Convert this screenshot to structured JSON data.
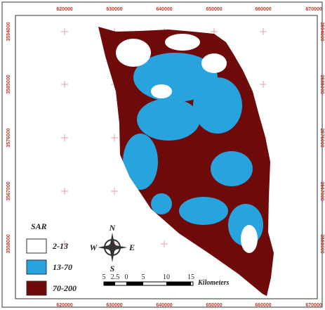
{
  "map": {
    "x_labels": [
      620000,
      630000,
      640000,
      650000,
      660000,
      670000
    ],
    "y_labels": [
      3594000,
      3585000,
      3576000,
      3567000,
      3558000
    ],
    "legend": {
      "title": "SAR",
      "items": [
        {
          "label": "2-13",
          "color": "#ffffff"
        },
        {
          "label": "13-70",
          "color": "#27a4dd"
        },
        {
          "label": "70-200",
          "color": "#6e0a0a"
        }
      ]
    },
    "compass": {
      "n": "N",
      "s": "S",
      "e": "E",
      "w": "W"
    },
    "scale": {
      "labels": [
        5,
        2.5,
        0,
        5,
        10,
        15
      ],
      "unit": "Kilometers"
    }
  }
}
